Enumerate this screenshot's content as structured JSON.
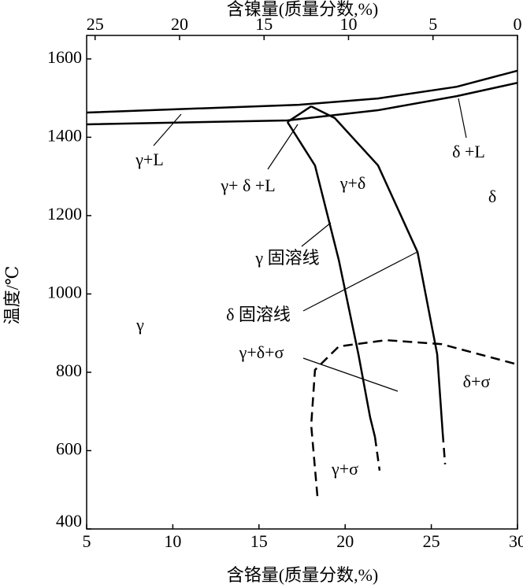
{
  "chart_data": {
    "type": "line",
    "xlabel": "含铬量(质量分数,%)",
    "x2label": "含镍量(质量分数,%)",
    "ylabel": "温度/℃",
    "xlim": [
      5,
      30
    ],
    "xticks": [
      5,
      10,
      15,
      20,
      25,
      30
    ],
    "x2lim": [
      25.5,
      0
    ],
    "x2ticks": [
      25,
      20,
      15,
      10,
      5,
      0
    ],
    "ylim": [
      400,
      1660
    ],
    "yticks": [
      400,
      600,
      800,
      1000,
      1200,
      1400,
      1600
    ],
    "series": [
      {
        "color": "#000000",
        "dashed": false,
        "x": [
          5,
          17.34,
          21.9,
          26.48,
          30
        ],
        "values": [
          1463,
          1483,
          1499,
          1529,
          1570
        ]
      },
      {
        "color": "#000000",
        "dashed": false,
        "x": [
          5,
          16.65,
          21.9,
          26.48,
          30
        ],
        "values": [
          1433,
          1443,
          1469,
          1505,
          1539
        ]
      },
      {
        "color": "#000000",
        "dashed": false,
        "x": [
          16.65,
          18.03
        ],
        "values": [
          1439,
          1479
        ]
      },
      {
        "color": "#000000",
        "dashed": false,
        "x": [
          16.65,
          18.25,
          19.63,
          20.77,
          21.45,
          21.73
        ],
        "values": [
          1439,
          1328,
          1087,
          846,
          685,
          635
        ]
      },
      {
        "color": "#000000",
        "dashed": true,
        "x": [
          21.73,
          22.0
        ],
        "values": [
          635,
          549
        ]
      },
      {
        "color": "#000000",
        "dashed": false,
        "x": [
          18.03,
          19.4,
          21.91,
          24.2,
          25.34,
          25.66
        ],
        "values": [
          1479,
          1449,
          1328,
          1107,
          846,
          645
        ]
      },
      {
        "color": "#000000",
        "dashed": true,
        "x": [
          25.66,
          25.8
        ],
        "values": [
          645,
          565
        ]
      },
      {
        "color": "#000000",
        "dashed": true,
        "x": [
          18.39,
          18.03,
          18.25,
          19.63,
          22.37,
          25.57,
          30
        ],
        "values": [
          484,
          665,
          806,
          866,
          882,
          872,
          820
        ]
      }
    ],
    "annotations": [
      "γ+L",
      "δ +L",
      "γ+ δ +L",
      "γ+δ",
      "δ",
      "γ 固溶线",
      "δ 固溶线",
      "γ",
      "γ+δ+σ",
      "δ+σ",
      "γ+σ"
    ]
  }
}
